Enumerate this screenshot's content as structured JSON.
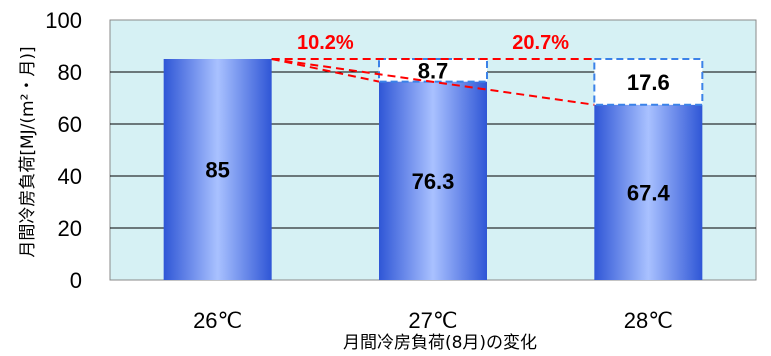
{
  "chart_data": {
    "type": "bar",
    "xlabel": "月間冷房負荷(8月)の変化",
    "ylabel": "月間冷房負荷[MJ/(m²・月)]",
    "ylim": [
      0,
      100
    ],
    "yticks": [
      0,
      20,
      40,
      60,
      80,
      100
    ],
    "categories": [
      "26℃",
      "27℃",
      "28℃"
    ],
    "values": [
      85,
      76.3,
      67.4
    ],
    "reductions": [
      {
        "category": "27℃",
        "value": 8.7
      },
      {
        "category": "28℃",
        "value": 17.6
      }
    ],
    "percent_labels": [
      "10.2%",
      "20.7%"
    ],
    "grid": true,
    "colors": {
      "plot_bg": "#d6f1f4",
      "bar_edge": "#2f56d6",
      "bar_center": "#a9c1ff",
      "reduction_box": "#3b82e8",
      "trend": "#ff0000"
    }
  }
}
